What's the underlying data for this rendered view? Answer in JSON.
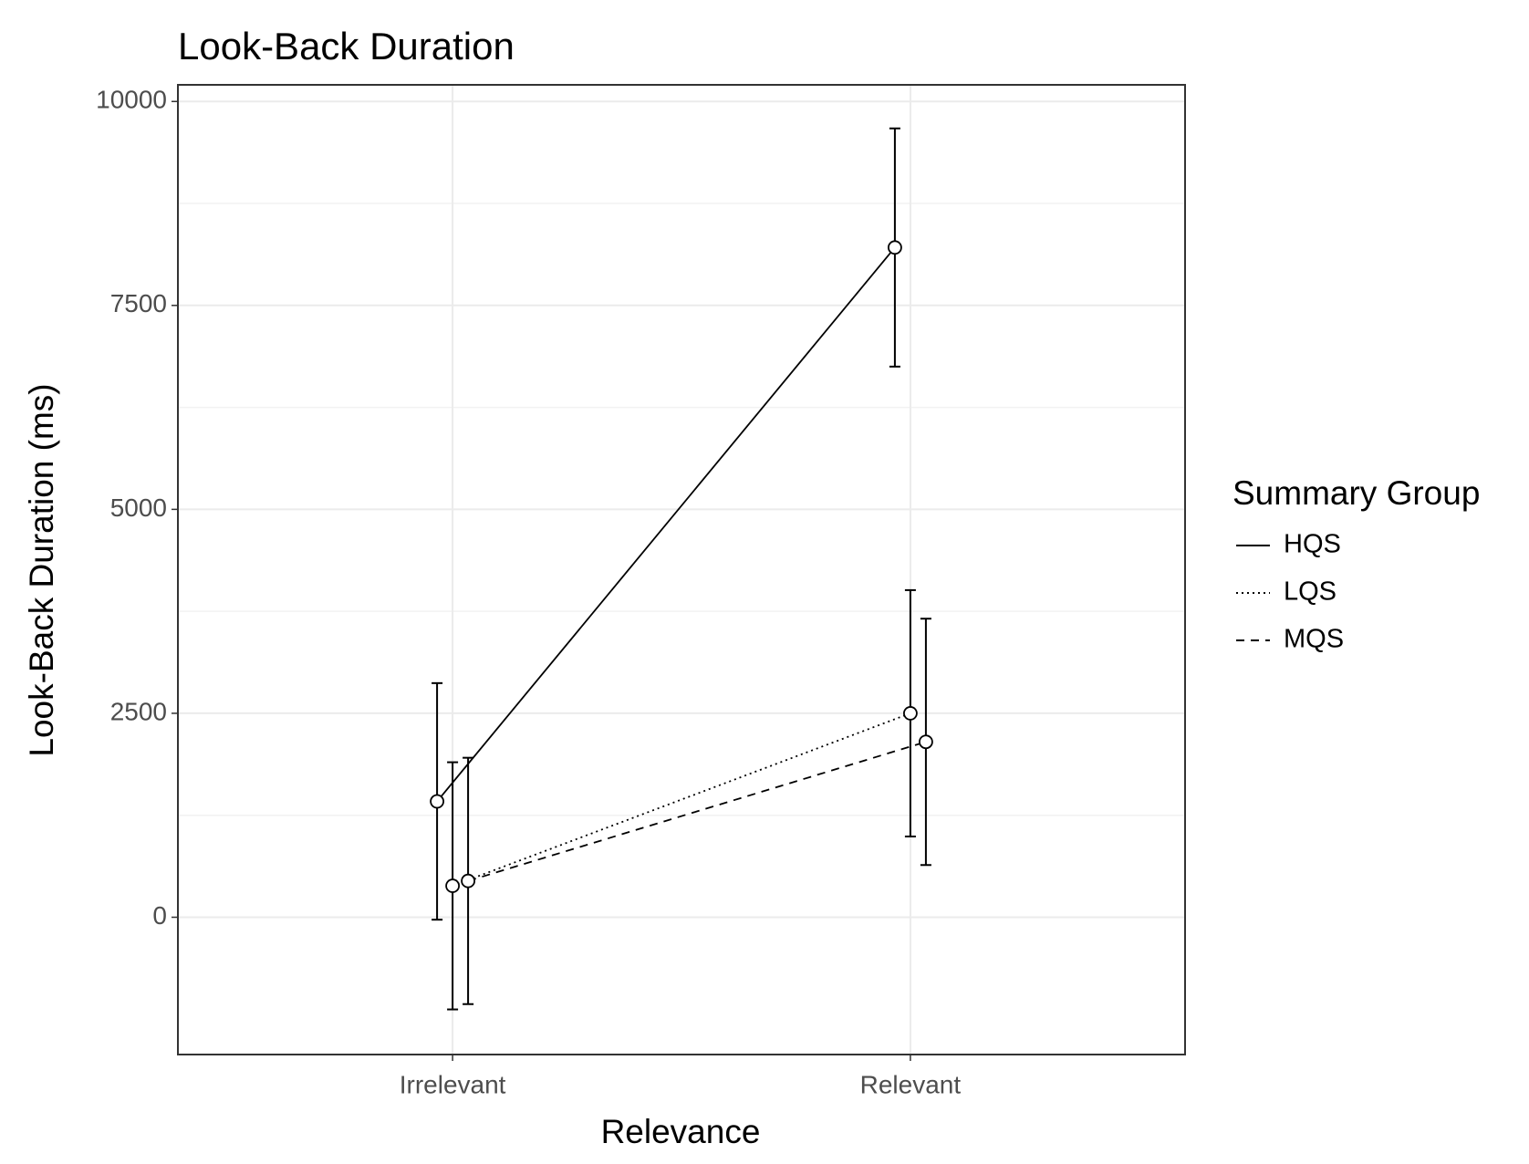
{
  "chart_data": {
    "type": "line",
    "title": "Look-Back Duration",
    "x_label": "Relevance",
    "y_label": "Look-Back Duration (ms)",
    "categories": [
      "Irrelevant",
      "Relevant"
    ],
    "legend_title": "Summary Group",
    "series": [
      {
        "name": "HQS",
        "color": "#000000",
        "line_style": "solid",
        "values": [
          1420,
          8210
        ],
        "errors": [
          1450,
          1460
        ]
      },
      {
        "name": "LQS",
        "color": "#000000",
        "line_style": "dotted",
        "values": [
          385,
          2500
        ],
        "errors": [
          1515,
          1510
        ]
      },
      {
        "name": "MQS",
        "color": "#000000",
        "line_style": "dashed",
        "values": [
          445,
          2150
        ],
        "errors": [
          1510,
          1510
        ]
      }
    ],
    "ylim": [
      -1683,
      10204
    ],
    "yticks": [
      0,
      2500,
      5000,
      7500,
      10000
    ],
    "grid": true,
    "legend": "right"
  }
}
